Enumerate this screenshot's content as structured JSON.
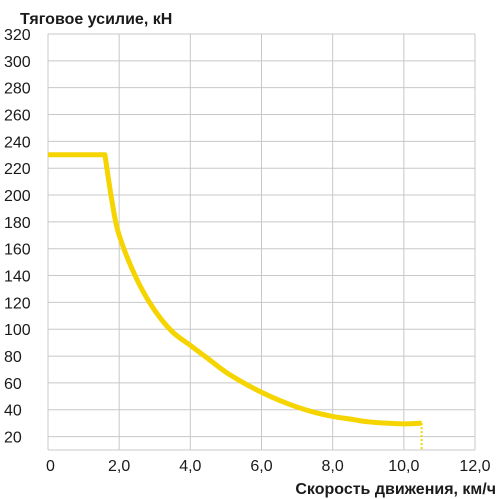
{
  "chart_data": {
    "type": "line",
    "title": "",
    "ylabel": "Тяговое усилие, кН",
    "xlabel": "Скорость движения, км/ч",
    "xlim": [
      0,
      12
    ],
    "ylim": [
      10,
      320
    ],
    "grid": true,
    "x_ticks": [
      {
        "value": 0,
        "label": "0"
      },
      {
        "value": 2,
        "label": "2,0"
      },
      {
        "value": 4,
        "label": "4,0"
      },
      {
        "value": 6,
        "label": "6,0"
      },
      {
        "value": 8,
        "label": "8,0"
      },
      {
        "value": 10,
        "label": "10,0"
      },
      {
        "value": 12,
        "label": "12,0"
      }
    ],
    "y_ticks": [
      {
        "value": 20,
        "label": "20"
      },
      {
        "value": 40,
        "label": "40"
      },
      {
        "value": 60,
        "label": "60"
      },
      {
        "value": 80,
        "label": "80"
      },
      {
        "value": 100,
        "label": "100"
      },
      {
        "value": 120,
        "label": "120"
      },
      {
        "value": 140,
        "label": "140"
      },
      {
        "value": 160,
        "label": "160"
      },
      {
        "value": 180,
        "label": "180"
      },
      {
        "value": 200,
        "label": "200"
      },
      {
        "value": 220,
        "label": "220"
      },
      {
        "value": 240,
        "label": "240"
      },
      {
        "value": 260,
        "label": "260"
      },
      {
        "value": 280,
        "label": "280"
      },
      {
        "value": 300,
        "label": "300"
      },
      {
        "value": 320,
        "label": "320"
      }
    ],
    "series": [
      {
        "color": "#f5d400",
        "x": [
          0,
          1.6,
          1.8,
          2.0,
          2.5,
          3.0,
          3.5,
          4.0,
          4.5,
          5.0,
          5.5,
          6.0,
          6.5,
          7.0,
          7.5,
          8.0,
          8.5,
          9.0,
          9.5,
          10.0,
          10.5
        ],
        "y": [
          230,
          230,
          195,
          170,
          137,
          114,
          98,
          88,
          78,
          68,
          60,
          53,
          47,
          42,
          38,
          35,
          33,
          31,
          30,
          29.5,
          30
        ]
      }
    ],
    "annotations": [
      {
        "type": "dotted-vertical",
        "x": 10.5,
        "from_y": 30,
        "to_y": 10,
        "color": "#f5d400"
      }
    ]
  }
}
